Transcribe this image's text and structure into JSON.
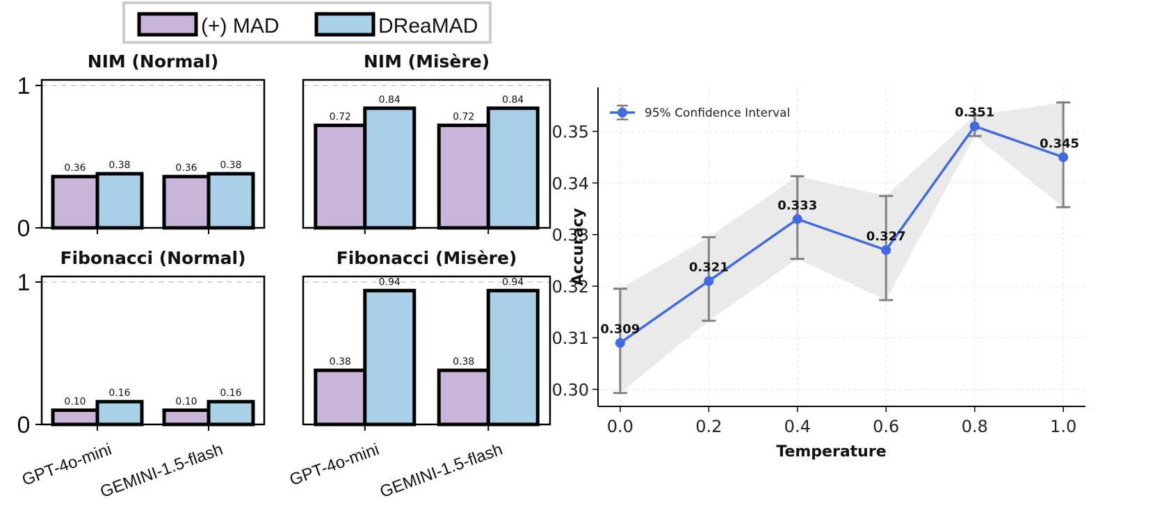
{
  "chart_data": [
    {
      "type": "bar",
      "title": "NIM (Normal)",
      "categories": [
        "GPT-4o-mini",
        "GEMINI-1.5-flash"
      ],
      "series": [
        {
          "name": "(+) MAD",
          "values": [
            0.36,
            0.36
          ]
        },
        {
          "name": "DReaMAD",
          "values": [
            0.38,
            0.38
          ]
        }
      ],
      "value_labels": [
        [
          "0.36",
          "0.36"
        ],
        [
          "0.38",
          "0.38"
        ]
      ],
      "yticks": [
        "0",
        "1"
      ],
      "ylim": [
        0,
        1.0
      ],
      "show_x_labels": false
    },
    {
      "type": "bar",
      "title": "NIM (Misère)",
      "categories": [
        "GPT-4o-mini",
        "GEMINI-1.5-flash"
      ],
      "series": [
        {
          "name": "(+) MAD",
          "values": [
            0.72,
            0.72
          ]
        },
        {
          "name": "DReaMAD",
          "values": [
            0.84,
            0.84
          ]
        }
      ],
      "value_labels": [
        [
          "0.72",
          "0.72"
        ],
        [
          "0.84",
          "0.84"
        ]
      ],
      "yticks": [],
      "ylim": [
        0,
        1.0
      ],
      "show_x_labels": false
    },
    {
      "type": "bar",
      "title": "Fibonacci (Normal)",
      "categories": [
        "GPT-4o-mini",
        "GEMINI-1.5-flash"
      ],
      "series": [
        {
          "name": "(+) MAD",
          "values": [
            0.1,
            0.1
          ]
        },
        {
          "name": "DReaMAD",
          "values": [
            0.16,
            0.16
          ]
        }
      ],
      "value_labels": [
        [
          "0.10",
          "0.10"
        ],
        [
          "0.16",
          "0.16"
        ]
      ],
      "yticks": [
        "0",
        "1"
      ],
      "ylim": [
        0,
        1.0
      ],
      "show_x_labels": true
    },
    {
      "type": "bar",
      "title": "Fibonacci (Misère)",
      "categories": [
        "GPT-4o-mini",
        "GEMINI-1.5-flash"
      ],
      "series": [
        {
          "name": "(+) MAD",
          "values": [
            0.38,
            0.38
          ]
        },
        {
          "name": "DReaMAD",
          "values": [
            0.94,
            0.94
          ]
        }
      ],
      "value_labels": [
        [
          "0.38",
          "0.38"
        ],
        [
          "0.94",
          "0.94"
        ]
      ],
      "yticks": [],
      "ylim": [
        0,
        1.0
      ],
      "show_x_labels": true
    },
    {
      "type": "line",
      "x": [
        0.0,
        0.2,
        0.4,
        0.6,
        0.8,
        1.0
      ],
      "y": [
        0.309,
        0.321,
        0.333,
        0.327,
        0.351,
        0.345
      ],
      "y_labels": [
        "0.309",
        "0.321",
        "0.333",
        "0.327",
        "0.351",
        "0.345"
      ],
      "ci_lower": [
        0.2993,
        0.3133,
        0.3253,
        0.3173,
        0.3491,
        0.3353
      ],
      "ci_upper": [
        0.3195,
        0.3295,
        0.3413,
        0.3375,
        0.3531,
        0.3556
      ],
      "xticks": [
        "0.0",
        "0.2",
        "0.4",
        "0.6",
        "0.8",
        "1.0"
      ],
      "yticks": [
        "0.30",
        "0.31",
        "0.32",
        "0.33",
        "0.34",
        "0.35"
      ],
      "xlim": [
        -0.05,
        1.05
      ],
      "ylim": [
        0.2967,
        0.3585
      ],
      "xlabel": "Temperature",
      "ylabel": "Accuracy",
      "legend": "95% Confidence Interval",
      "legend_position": "top-left",
      "grid": true
    }
  ],
  "legend": {
    "items": [
      {
        "label": "(+) MAD",
        "color": "#c9b4da"
      },
      {
        "label": "DReaMAD",
        "color": "#a8d1e7"
      }
    ]
  },
  "colors": {
    "line": "#4169e1",
    "band": "#e6e6e6",
    "errorbar": "#808080"
  }
}
